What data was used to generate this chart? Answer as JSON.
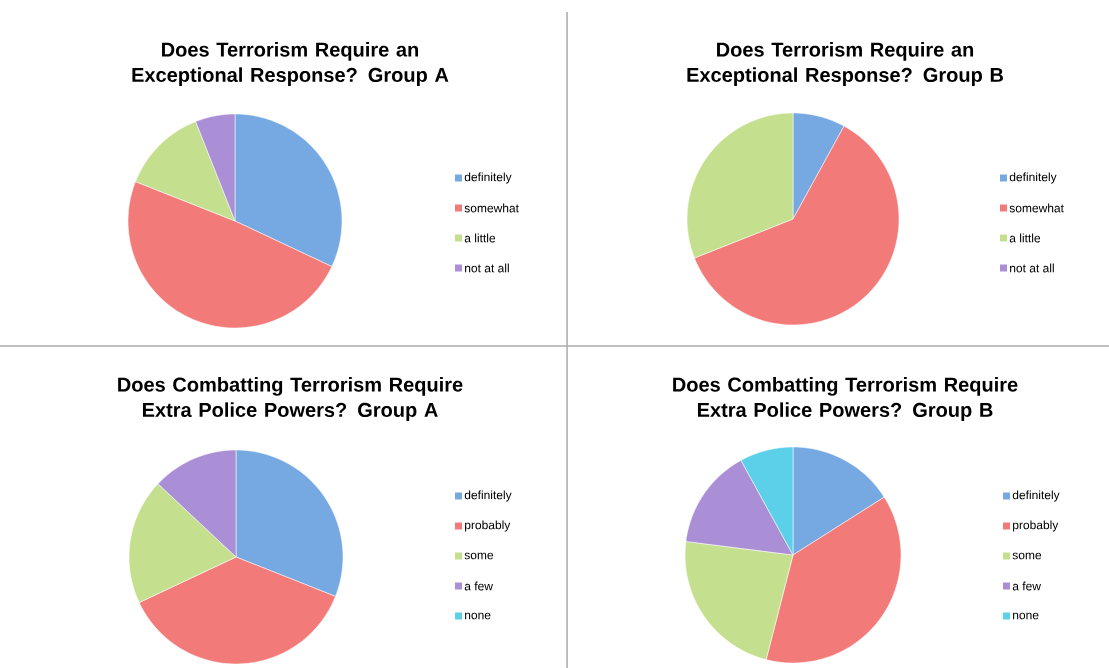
{
  "chart_data": [
    {
      "type": "pie",
      "title": "Does Terrorism Require an Exceptional Response? Group A",
      "categories": [
        "definitely",
        "somewhat",
        "a little",
        "not at all"
      ],
      "values": [
        32,
        49,
        13,
        6
      ],
      "colors": [
        "#76a9e2",
        "#f27b7a",
        "#c4e08e",
        "#ab8fd6"
      ],
      "legend": "right"
    },
    {
      "type": "pie",
      "title": "Does Terrorism Require an Exceptional Response? Group B",
      "categories": [
        "definitely",
        "somewhat",
        "a little",
        "not at all"
      ],
      "values": [
        8,
        61,
        31,
        0
      ],
      "colors": [
        "#76a9e2",
        "#f27b7a",
        "#c4e08e",
        "#ab8fd6"
      ],
      "legend": "right"
    },
    {
      "type": "pie",
      "title": "Does Combatting Terrorism Require Extra Police Powers? Group A",
      "categories": [
        "definitely",
        "probably",
        "some",
        "a few",
        "none"
      ],
      "values": [
        31,
        37,
        19,
        13,
        0
      ],
      "colors": [
        "#76a9e2",
        "#f27b7a",
        "#c4e08e",
        "#ab8fd6",
        "#5bd0e8"
      ],
      "legend": "right"
    },
    {
      "type": "pie",
      "title": "Does Combatting Terrorism Require Extra Police Powers? Group B",
      "categories": [
        "definitely",
        "probably",
        "some",
        "a few",
        "none"
      ],
      "values": [
        16,
        38,
        23,
        15,
        8
      ],
      "colors": [
        "#76a9e2",
        "#f27b7a",
        "#c4e08e",
        "#ab8fd6",
        "#5bd0e8"
      ],
      "legend": "right"
    }
  ]
}
